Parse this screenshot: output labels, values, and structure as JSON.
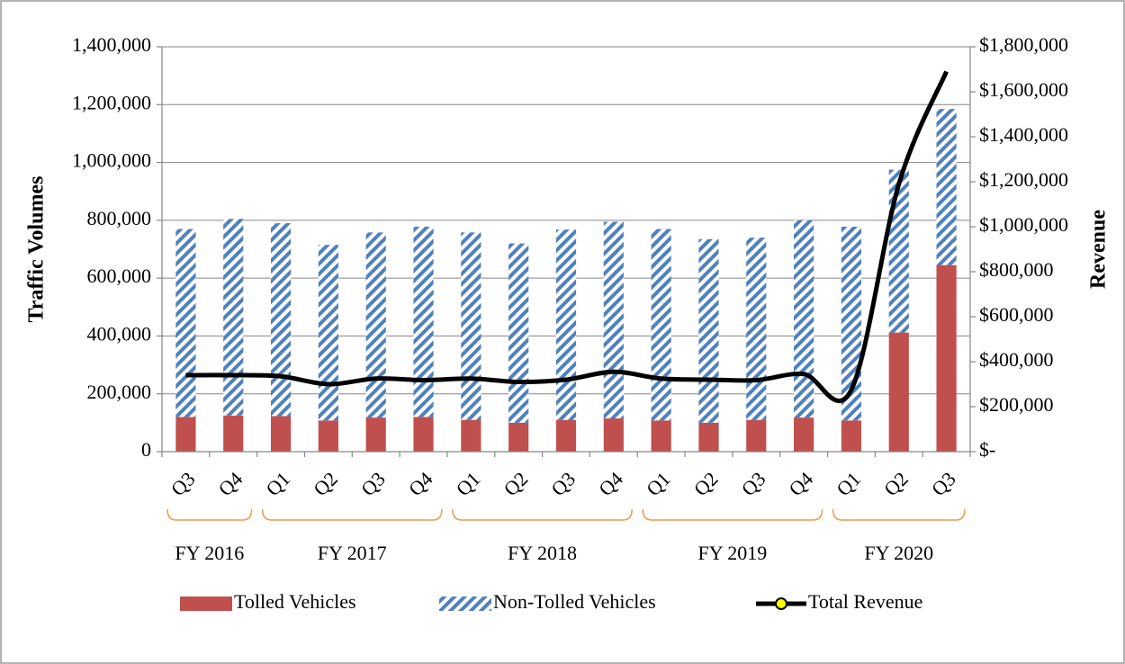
{
  "chart_data": {
    "type": "stacked_bar_line",
    "categories": [
      "Q3",
      "Q4",
      "Q1",
      "Q2",
      "Q3",
      "Q4",
      "Q1",
      "Q2",
      "Q3",
      "Q4",
      "Q1",
      "Q2",
      "Q3",
      "Q4",
      "Q1",
      "Q2",
      "Q3"
    ],
    "category_groups": [
      {
        "label": "FY 2016",
        "size": 2
      },
      {
        "label": "FY 2017",
        "size": 4
      },
      {
        "label": "FY 2018",
        "size": 4
      },
      {
        "label": "FY 2019",
        "size": 4
      },
      {
        "label": "FY 2020",
        "size": 3
      }
    ],
    "series": [
      {
        "name": "Tolled Vehicles",
        "color": "#c0504d",
        "kind": "bar",
        "values": [
          120000,
          125000,
          123000,
          108000,
          118000,
          120000,
          110000,
          100000,
          110000,
          115000,
          108000,
          100000,
          110000,
          118000,
          108000,
          412000,
          645000
        ]
      },
      {
        "name": "Non-Tolled Vehicles",
        "color": "#4f81bd",
        "kind": "bar",
        "pattern": "hatch",
        "values": [
          650000,
          680000,
          667000,
          607000,
          640000,
          658000,
          648000,
          620000,
          658000,
          680000,
          662000,
          635000,
          630000,
          682000,
          670000,
          563000,
          540000
        ]
      },
      {
        "name": "Total Revenue",
        "color": "#000000",
        "kind": "line",
        "axis": "y2",
        "values": [
          340000,
          340000,
          335000,
          300000,
          325000,
          318000,
          325000,
          310000,
          320000,
          355000,
          325000,
          320000,
          318000,
          345000,
          275000,
          1190000,
          1690000
        ]
      }
    ],
    "ylabel": "Traffic Volumes",
    "y2label": "Revenue",
    "ylim": [
      0,
      1400000
    ],
    "yticks": [
      0,
      {
        "value": 200000,
        "label": "200,000"
      },
      {
        "value": 400000,
        "label": "400,000"
      },
      {
        "value": 600000,
        "label": "600,000"
      },
      {
        "value": 800000,
        "label": "800,000"
      },
      {
        "value": 1000000,
        "label": "1,000,000"
      },
      {
        "value": 1200000,
        "label": "1,200,000"
      },
      {
        "value": 1400000,
        "label": "1,400,000"
      }
    ],
    "y2lim": [
      0,
      1800000
    ],
    "y2ticks": [
      {
        "value": 0,
        "label": "$-"
      },
      {
        "value": 200000,
        "label": "$200,000"
      },
      {
        "value": 400000,
        "label": "$400,000"
      },
      {
        "value": 600000,
        "label": "$600,000"
      },
      {
        "value": 800000,
        "label": "$800,000"
      },
      {
        "value": 1000000,
        "label": "$1,000,000"
      },
      {
        "value": 1200000,
        "label": "$1,200,000"
      },
      {
        "value": 1400000,
        "label": "$1,400,000"
      },
      {
        "value": 1600000,
        "label": "$1,600,000"
      },
      {
        "value": 1800000,
        "label": "$1,800,000"
      }
    ],
    "grid": true,
    "legend": "bottom"
  }
}
